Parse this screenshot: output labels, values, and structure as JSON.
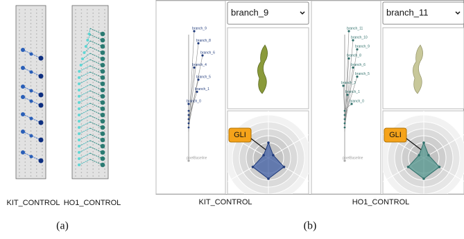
{
  "panel_a": {
    "views": [
      {
        "label": "KIT_CONTROL"
      },
      {
        "label": "HO1_CONTROL"
      }
    ],
    "caption": "(a)"
  },
  "panel_b": {
    "views": [
      {
        "label": "KIT_CONTROL",
        "dropdown": "branch_9",
        "callout": "GLI",
        "tree_labels": [
          "branch_9",
          "branch_8",
          "branch_6",
          "branch_4",
          "branch_5",
          "branch_1",
          "branch_0",
          "pixelBaseline"
        ]
      },
      {
        "label": "HO1_CONTROL",
        "dropdown": "branch_11",
        "callout": "GLI",
        "tree_labels": [
          "branch_11",
          "branch_10",
          "branch_9",
          "branch_8",
          "branch_6",
          "branch_5",
          "branch_3",
          "branch_1",
          "branch_0",
          "pixelBaseline"
        ]
      }
    ],
    "caption": "(b)"
  }
}
